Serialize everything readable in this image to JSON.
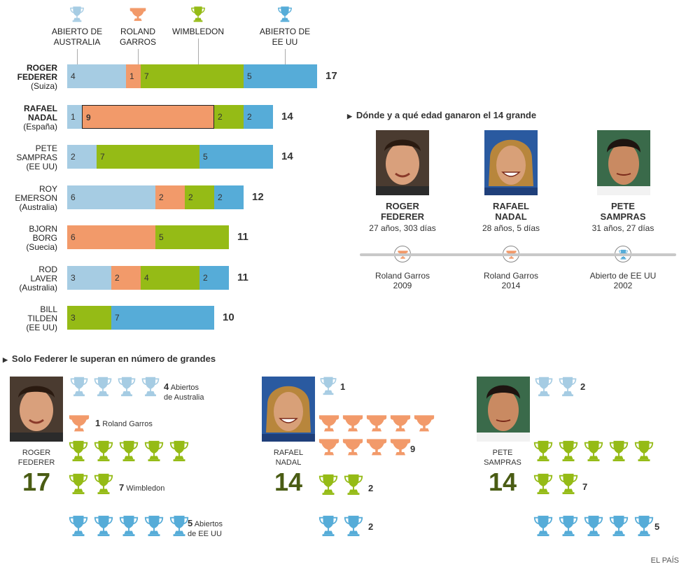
{
  "colors": {
    "australia": "#a6cce3",
    "roland": "#f29a6a",
    "wimbledon": "#95bb16",
    "usopen": "#56acd8",
    "bignum": "#4a5c14"
  },
  "legend": [
    {
      "key": "australia",
      "label": "ABIERTO DE AUSTRALIA",
      "icon": "trophy-icon"
    },
    {
      "key": "roland",
      "label": "ROLAND GARROS",
      "icon": "cup-icon"
    },
    {
      "key": "wimbledon",
      "label": "WIMBLEDON",
      "icon": "trophy-icon"
    },
    {
      "key": "usopen",
      "label": "ABIERTO DE EE UU",
      "icon": "trophy-icon"
    }
  ],
  "chart_data": {
    "type": "bar",
    "orientation": "horizontal",
    "stacked": true,
    "series_names": [
      "ABIERTO DE AUSTRALIA",
      "ROLAND GARROS",
      "WIMBLEDON",
      "ABIERTO DE EE UU"
    ],
    "players": [
      {
        "name": "ROGER FEDERER",
        "country": "(Suiza)",
        "values": [
          4,
          1,
          7,
          5
        ],
        "total": 17,
        "highlight": -1
      },
      {
        "name": "RAFAEL NADAL",
        "country": "(España)",
        "values": [
          1,
          9,
          2,
          2
        ],
        "total": 14,
        "highlight": 1
      },
      {
        "name": "PETE SAMPRAS",
        "country": "(EE UU)",
        "values": [
          2,
          0,
          7,
          5
        ],
        "total": 14,
        "highlight": -1
      },
      {
        "name": "ROY EMERSON",
        "country": "(Australia)",
        "values": [
          6,
          2,
          2,
          2
        ],
        "total": 12,
        "highlight": -1
      },
      {
        "name": "BJORN BORG",
        "country": "(Suecia)",
        "values": [
          0,
          6,
          5,
          0
        ],
        "total": 11,
        "highlight": -1
      },
      {
        "name": "ROD LAVER",
        "country": "(Australia)",
        "values": [
          3,
          2,
          4,
          2
        ],
        "total": 11,
        "highlight": -1
      },
      {
        "name": "BILL TILDEN",
        "country": "(EE UU)",
        "values": [
          0,
          0,
          3,
          7
        ],
        "total": 10,
        "highlight": -1
      }
    ]
  },
  "fourteenth": {
    "title": "Dónde y a qué edad ganaron el 14 grande",
    "players": [
      {
        "first": "ROGER",
        "last": "FEDERER",
        "age": "27 años, 303 días",
        "tournament": "Roland Garros",
        "year": "2009",
        "icon": "cup-icon",
        "key": "roland"
      },
      {
        "first": "RAFAEL",
        "last": "NADAL",
        "age": "28 años, 5 días",
        "tournament": "Roland Garros",
        "year": "2014",
        "icon": "cup-icon",
        "key": "roland"
      },
      {
        "first": "PETE",
        "last": "SAMPRAS",
        "age": "31 años, 27 días",
        "tournament": "Abierto de EE UU",
        "year": "2002",
        "icon": "trophy-icon",
        "key": "usopen"
      }
    ]
  },
  "bottom": {
    "title": "Solo Federer le superan en número de grandes",
    "federer": {
      "first": "ROGER",
      "last": "FEDERER",
      "total": "17",
      "notes": [
        {
          "n": "4",
          "text": "Abiertos",
          "text2": "de Australia"
        },
        {
          "n": "1",
          "text": "Roland Garros"
        },
        {
          "n": "7",
          "text": "Wimbledon"
        },
        {
          "n": "5",
          "text": "Abiertos",
          "text2": "de EE UU"
        }
      ]
    },
    "nadal": {
      "first": "RAFAEL",
      "last": "NADAL",
      "total": "14",
      "counts": [
        "1",
        "9",
        "2",
        "2"
      ]
    },
    "sampras": {
      "first": "PETE",
      "last": "SAMPRAS",
      "total": "14",
      "counts": [
        "2",
        "7",
        "5"
      ]
    }
  },
  "source": "EL PAÍS"
}
